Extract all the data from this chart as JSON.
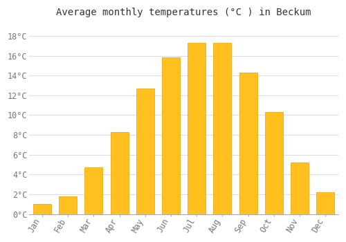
{
  "months": [
    "Jan",
    "Feb",
    "Mar",
    "Apr",
    "May",
    "Jun",
    "Jul",
    "Aug",
    "Sep",
    "Oct",
    "Nov",
    "Dec"
  ],
  "values": [
    1.0,
    1.8,
    4.7,
    8.3,
    12.7,
    15.8,
    17.3,
    17.3,
    14.3,
    10.3,
    5.2,
    2.2
  ],
  "bar_color": "#FFC020",
  "bar_edge_color": "#E8A000",
  "title": "Average monthly temperatures (°C ) in Beckum",
  "title_fontsize": 10,
  "ylabel_ticks": [
    0,
    2,
    4,
    6,
    8,
    10,
    12,
    14,
    16,
    18
  ],
  "tick_labels": [
    "0°C",
    "2°C",
    "4°C",
    "6°C",
    "8°C",
    "10°C",
    "12°C",
    "14°C",
    "16°C",
    "18°C"
  ],
  "ylim": [
    0,
    19.5
  ],
  "background_color": "#ffffff",
  "plot_bg_color": "#ffffff",
  "grid_color": "#dddddd",
  "font_family": "monospace",
  "title_color": "#333333",
  "tick_color": "#777777",
  "font_size": 8.5
}
